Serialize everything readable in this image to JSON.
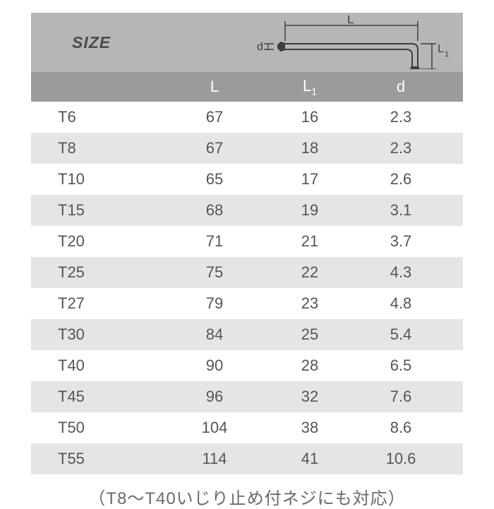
{
  "header": {
    "size_label": "SIZE",
    "columns": {
      "l": "L",
      "l1_main": "L",
      "l1_sub": "1",
      "d": "d"
    }
  },
  "diagram": {
    "stroke": "#3f3e3c",
    "labels": {
      "L": "L",
      "L1_main": "L",
      "L1_sub": "1",
      "d": "d",
      "d_gap": "I"
    }
  },
  "rows": [
    {
      "size": "T6",
      "L": "67",
      "L1": "16",
      "d": "2.3",
      "band": false
    },
    {
      "size": "T8",
      "L": "67",
      "L1": "18",
      "d": "2.3",
      "band": true
    },
    {
      "size": "T10",
      "L": "65",
      "L1": "17",
      "d": "2.6",
      "band": false
    },
    {
      "size": "T15",
      "L": "68",
      "L1": "19",
      "d": "3.1",
      "band": true
    },
    {
      "size": "T20",
      "L": "71",
      "L1": "21",
      "d": "3.7",
      "band": false
    },
    {
      "size": "T25",
      "L": "75",
      "L1": "22",
      "d": "4.3",
      "band": true
    },
    {
      "size": "T27",
      "L": "79",
      "L1": "23",
      "d": "4.8",
      "band": false
    },
    {
      "size": "T30",
      "L": "84",
      "L1": "25",
      "d": "5.4",
      "band": true
    },
    {
      "size": "T40",
      "L": "90",
      "L1": "28",
      "d": "6.5",
      "band": false
    },
    {
      "size": "T45",
      "L": "96",
      "L1": "32",
      "d": "7.6",
      "band": true
    },
    {
      "size": "T50",
      "L": "104",
      "L1": "38",
      "d": "8.6",
      "band": false
    },
    {
      "size": "T55",
      "L": "114",
      "L1": "41",
      "d": "10.6",
      "band": true
    }
  ],
  "footnote": "（T8～T40いじり止め付ネジにも対応）",
  "colors": {
    "header_top_bg": "#b6b6b5",
    "header_cols_bg": "#9a9b9d",
    "band_bg": "#e4e5e7",
    "text": "#555555",
    "header_text": "#ffffff"
  }
}
